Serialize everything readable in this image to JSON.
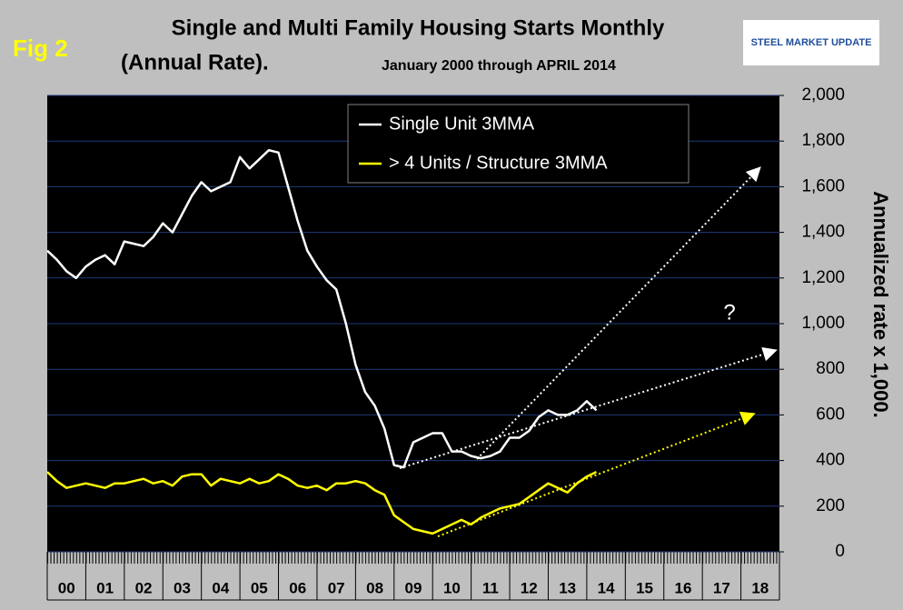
{
  "chart_data": {
    "type": "line",
    "fig_label": "Fig 2",
    "title": "Single and Multi Family Housing Starts Monthly",
    "title_line2": "(Annual Rate).",
    "subtitle": "January 2000 through APRIL 2014",
    "logo": "STEEL MARKET UPDATE",
    "annotation": "?",
    "y_label": "Annualized rate x 1,000.",
    "x": [
      0,
      0.25,
      0.5,
      0.75,
      1,
      1.25,
      1.5,
      1.75,
      2,
      2.25,
      2.5,
      2.75,
      3,
      3.25,
      3.5,
      3.75,
      4,
      4.25,
      4.5,
      4.75,
      5,
      5.25,
      5.5,
      5.75,
      6,
      6.25,
      6.5,
      6.75,
      7,
      7.25,
      7.5,
      7.75,
      8,
      8.25,
      8.5,
      8.75,
      9,
      9.25,
      9.5,
      9.75,
      10,
      10.25,
      10.5,
      10.75,
      11,
      11.25,
      11.5,
      11.75,
      12,
      12.25,
      12.5,
      12.75,
      13,
      13.25,
      13.5,
      13.75,
      14,
      14.25
    ],
    "series": [
      {
        "name": "Single Unit 3MMA",
        "color": "#ffffff",
        "values": [
          1320,
          1280,
          1230,
          1200,
          1250,
          1280,
          1300,
          1260,
          1360,
          1350,
          1340,
          1380,
          1440,
          1400,
          1480,
          1560,
          1620,
          1580,
          1600,
          1620,
          1730,
          1680,
          1720,
          1760,
          1750,
          1600,
          1450,
          1320,
          1250,
          1190,
          1150,
          1000,
          820,
          700,
          640,
          540,
          380,
          370,
          480,
          500,
          520,
          520,
          440,
          440,
          420,
          410,
          420,
          440,
          500,
          500,
          530,
          590,
          620,
          600,
          600,
          620,
          660,
          620
        ]
      },
      {
        "name": "> 4 Units / Structure 3MMA",
        "color": "#ffff00",
        "values": [
          350,
          310,
          280,
          290,
          300,
          290,
          280,
          300,
          300,
          310,
          320,
          300,
          310,
          290,
          330,
          340,
          340,
          290,
          320,
          310,
          300,
          320,
          300,
          310,
          340,
          320,
          290,
          280,
          290,
          270,
          300,
          300,
          310,
          300,
          270,
          250,
          160,
          130,
          100,
          90,
          80,
          100,
          120,
          140,
          120,
          150,
          170,
          190,
          200,
          210,
          240,
          270,
          300,
          280,
          260,
          300,
          330,
          350
        ]
      }
    ],
    "xlim": [
      0,
      19
    ],
    "xticks": [
      {
        "value": 0.5,
        "label": "00"
      },
      {
        "value": 1.5,
        "label": "01"
      },
      {
        "value": 2.5,
        "label": "02"
      },
      {
        "value": 3.5,
        "label": "03"
      },
      {
        "value": 4.5,
        "label": "04"
      },
      {
        "value": 5.5,
        "label": "05"
      },
      {
        "value": 6.5,
        "label": "06"
      },
      {
        "value": 7.5,
        "label": "07"
      },
      {
        "value": 8.5,
        "label": "08"
      },
      {
        "value": 9.5,
        "label": "09"
      },
      {
        "value": 10.5,
        "label": "10"
      },
      {
        "value": 11.5,
        "label": "11"
      },
      {
        "value": 12.5,
        "label": "12"
      },
      {
        "value": 13.5,
        "label": "13"
      },
      {
        "value": 14.5,
        "label": "14"
      },
      {
        "value": 15.5,
        "label": "15"
      },
      {
        "value": 16.5,
        "label": "16"
      },
      {
        "value": 17.5,
        "label": "17"
      },
      {
        "value": 18.5,
        "label": "18"
      }
    ],
    "ylim": [
      0,
      2000
    ],
    "yticks": [
      0,
      200,
      400,
      600,
      800,
      {
        "value": 1000,
        "label": "1,000"
      },
      {
        "value": 1200,
        "label": "1,200"
      },
      {
        "value": 1400,
        "label": "1,400"
      },
      {
        "value": 1600,
        "label": "1,600"
      },
      {
        "value": 1800,
        "label": "1,800"
      },
      {
        "value": 2000,
        "label": "2,000"
      }
    ],
    "grid": true,
    "legend": "top"
  }
}
